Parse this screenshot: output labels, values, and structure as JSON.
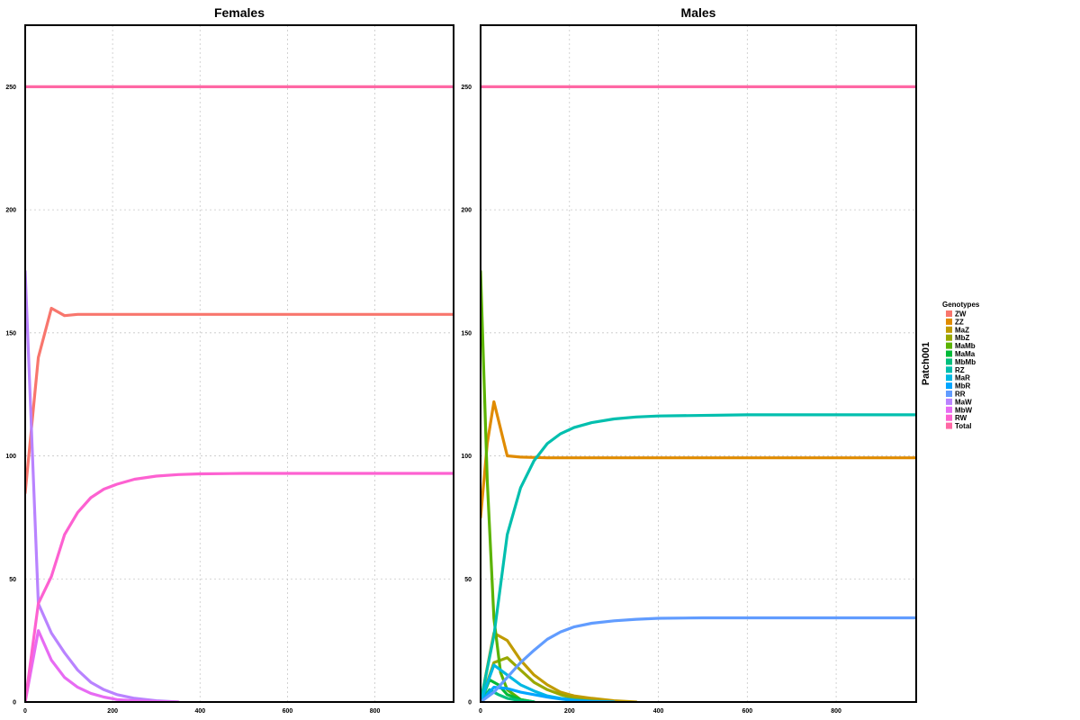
{
  "chart_data": {
    "type": "line",
    "xlim": [
      0,
      980
    ],
    "ylim": [
      0,
      275
    ],
    "x_ticks": [
      0,
      200,
      400,
      600,
      800
    ],
    "y_ticks": [
      0,
      50,
      100,
      150,
      200,
      250
    ],
    "grid": true,
    "strip_label": "Patch001",
    "legend": {
      "title": "Genotypes",
      "placement": "right",
      "entries": [
        {
          "label": "ZW",
          "color": "#F8766D"
        },
        {
          "label": "ZZ",
          "color": "#E08B00"
        },
        {
          "label": "MaZ",
          "color": "#C09B00"
        },
        {
          "label": "MbZ",
          "color": "#99A800"
        },
        {
          "label": "MaMb",
          "color": "#5BB300"
        },
        {
          "label": "MaMa",
          "color": "#00BA38"
        },
        {
          "label": "MbMb",
          "color": "#00BF7D"
        },
        {
          "label": "RZ",
          "color": "#00BFAE"
        },
        {
          "label": "MaR",
          "color": "#00B8E3"
        },
        {
          "label": "MbR",
          "color": "#00A5FF"
        },
        {
          "label": "RR",
          "color": "#619CFF"
        },
        {
          "label": "MaW",
          "color": "#B983FF"
        },
        {
          "label": "MbW",
          "color": "#E76BF3"
        },
        {
          "label": "RW",
          "color": "#FD61D1"
        },
        {
          "label": "Total",
          "color": "#FF67A4"
        }
      ]
    },
    "panels": [
      {
        "title": "Females",
        "series": [
          {
            "name": "ZW",
            "color": "#F8766D",
            "x": [
              0,
              30,
              60,
              90,
              120,
              980
            ],
            "y": [
              85,
              140,
              160,
              157,
              157.5,
              157.5
            ]
          },
          {
            "name": "MaW",
            "color": "#B983FF",
            "x": [
              0,
              30,
              60,
              90,
              120,
              150,
              180,
              210,
              250,
              300,
              350
            ],
            "y": [
              175,
              40,
              28,
              20,
              13,
              8,
              5,
              3,
              1.5,
              0.5,
              0
            ]
          },
          {
            "name": "MbW",
            "color": "#E76BF3",
            "x": [
              0,
              30,
              60,
              90,
              120,
              150,
              180,
              210,
              250,
              300,
              350
            ],
            "y": [
              0,
              29,
              17,
              10,
              6,
              3.5,
              2,
              1,
              0.5,
              0.2,
              0
            ]
          },
          {
            "name": "RW",
            "color": "#FD61D1",
            "x": [
              0,
              30,
              60,
              90,
              120,
              150,
              180,
              210,
              250,
              300,
              350,
              400,
              500,
              980
            ],
            "y": [
              0,
              40,
              51,
              68,
              77,
              83,
              86.5,
              88.5,
              90.5,
              91.8,
              92.4,
              92.7,
              92.9,
              92.9
            ]
          },
          {
            "name": "Total",
            "color": "#FF67A4",
            "x": [
              0,
              980
            ],
            "y": [
              250,
              250
            ]
          }
        ]
      },
      {
        "title": "Males",
        "series": [
          {
            "name": "ZZ",
            "color": "#E08B00",
            "x": [
              0,
              15,
              30,
              60,
              90,
              150,
              980
            ],
            "y": [
              75,
              105,
              122,
              100,
              99.5,
              99.2,
              99.2
            ]
          },
          {
            "name": "MaZ",
            "color": "#C09B00",
            "x": [
              0,
              30,
              60,
              90,
              120,
              150,
              180,
              210,
              250,
              300,
              350
            ],
            "y": [
              0,
              28,
              25,
              17,
              11,
              7,
              4,
              2.5,
              1.5,
              0.5,
              0
            ]
          },
          {
            "name": "MbZ",
            "color": "#99A800",
            "x": [
              0,
              30,
              60,
              90,
              120,
              150,
              180,
              210,
              250,
              300
            ],
            "y": [
              0,
              16,
              18,
              13,
              8,
              5,
              3,
              1.5,
              0.5,
              0
            ]
          },
          {
            "name": "MaMb",
            "color": "#5BB300",
            "x": [
              0,
              15,
              30,
              45,
              60,
              90,
              120
            ],
            "y": [
              175,
              90,
              34,
              12,
              5,
              1,
              0
            ]
          },
          {
            "name": "MaMa",
            "color": "#00BA38",
            "x": [
              0,
              20,
              40,
              60,
              90,
              120
            ],
            "y": [
              0,
              9,
              7,
              3,
              1,
              0
            ]
          },
          {
            "name": "MbMb",
            "color": "#00BF7D",
            "x": [
              0,
              20,
              40,
              60,
              90,
              120
            ],
            "y": [
              0,
              5,
              3,
              1.5,
              0.5,
              0
            ]
          },
          {
            "name": "RZ",
            "color": "#00BFAE",
            "x": [
              0,
              30,
              60,
              90,
              120,
              150,
              180,
              210,
              250,
              300,
              350,
              400,
              600,
              980
            ],
            "y": [
              0,
              27,
              68,
              87,
              98,
              105,
              109,
              111.5,
              113.5,
              115,
              115.8,
              116.2,
              116.7,
              116.7
            ]
          },
          {
            "name": "MaR",
            "color": "#00B8E3",
            "x": [
              0,
              30,
              60,
              90,
              120,
              150,
              180,
              210,
              250,
              300
            ],
            "y": [
              0,
              15,
              11,
              7,
              4.5,
              2.5,
              1.5,
              0.8,
              0.3,
              0
            ]
          },
          {
            "name": "MbR",
            "color": "#00A5FF",
            "x": [
              0,
              30,
              60,
              90,
              120,
              150,
              180,
              210,
              250,
              300
            ],
            "y": [
              0,
              6,
              5.5,
              4,
              3,
              2,
              1.2,
              0.6,
              0.2,
              0
            ]
          },
          {
            "name": "RR",
            "color": "#619CFF",
            "x": [
              0,
              30,
              60,
              90,
              120,
              150,
              180,
              210,
              250,
              300,
              350,
              400,
              500,
              980
            ],
            "y": [
              0,
              4,
              10,
              16,
              21,
              25.5,
              28.5,
              30.5,
              32,
              33,
              33.6,
              34,
              34.2,
              34.2
            ]
          },
          {
            "name": "Total",
            "color": "#FF67A4",
            "x": [
              0,
              980
            ],
            "y": [
              250,
              250
            ]
          }
        ]
      }
    ]
  }
}
